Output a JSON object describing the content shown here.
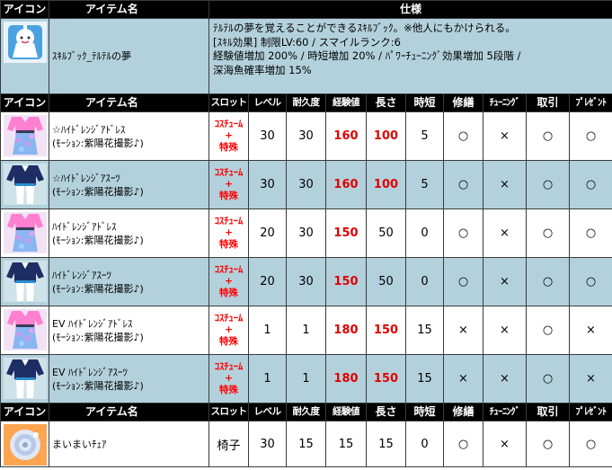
{
  "skill_table": {
    "header": {
      "icon": "アイコン",
      "name": "アイテム名",
      "spec": "仕様"
    },
    "item": {
      "icon": "skillbook-teruteru-icon",
      "name": "ｽｷﾙﾌﾞｯｸ_ﾃﾙﾃﾙの夢",
      "spec_lines": [
        "ﾃﾙﾃﾙの夢を覚えることができるｽｷﾙﾌﾞｯｸ。※他人にもかけられる。",
        "[ｽｷﾙ効果] 制限LV:60 / スマイルランク:6",
        "経験値増加 200% / 時短増加 20% / ﾊﾟﾜｰﾁｭｰﾆﾝｸﾞ効果増加 5段階 /",
        "深海魚確率増加 15%"
      ]
    }
  },
  "costume_table": {
    "headers": [
      "アイコン",
      "アイテム名",
      "スロット",
      "レベル",
      "耐久度",
      "経験値",
      "長さ",
      "時短",
      "修繕",
      "ﾁｭｰﾆﾝｸﾞ",
      "取引",
      "ﾌﾟﾚｾﾞﾝﾄ"
    ],
    "rows": [
      {
        "icon": "dress-icon",
        "name1": "☆ﾊｲﾄﾞﾚﾝｼﾞｱﾄﾞﾚｽ",
        "name2": "(ﾓｰｼｮﾝ:紫陽花撮影♪)",
        "slot1": "ｺｽﾁｭｰﾑ",
        "slot2": "+",
        "slot3": "特殊",
        "level": "30",
        "durability": "30",
        "exp": "160",
        "length": "100",
        "time": "5",
        "repair": "○",
        "tuning": "×",
        "trade": "○",
        "present": "○"
      },
      {
        "icon": "suit-icon",
        "name1": "☆ﾊｲﾄﾞﾚﾝｼﾞｱｽｰﾂ",
        "name2": "(ﾓｰｼｮﾝ:紫陽花撮影♪)",
        "slot1": "ｺｽﾁｭｰﾑ",
        "slot2": "+",
        "slot3": "特殊",
        "level": "30",
        "durability": "30",
        "exp": "160",
        "length": "100",
        "time": "5",
        "repair": "○",
        "tuning": "×",
        "trade": "○",
        "present": "○"
      },
      {
        "icon": "dress-icon",
        "name1": "ﾊｲﾄﾞﾚﾝｼﾞｱﾄﾞﾚｽ",
        "name2": "(ﾓｰｼｮﾝ:紫陽花撮影♪)",
        "slot1": "ｺｽﾁｭｰﾑ",
        "slot2": "+",
        "slot3": "特殊",
        "level": "20",
        "durability": "30",
        "exp": "150",
        "length": "50",
        "time": "0",
        "repair": "○",
        "tuning": "×",
        "trade": "○",
        "present": "○"
      },
      {
        "icon": "suit-icon",
        "name1": "ﾊｲﾄﾞﾚﾝｼﾞｱｽｰﾂ",
        "name2": "(ﾓｰｼｮﾝ:紫陽花撮影♪)",
        "slot1": "ｺｽﾁｭｰﾑ",
        "slot2": "+",
        "slot3": "特殊",
        "level": "20",
        "durability": "30",
        "exp": "150",
        "length": "50",
        "time": "0",
        "repair": "○",
        "tuning": "×",
        "trade": "○",
        "present": "○"
      },
      {
        "icon": "dress-icon",
        "name1": "EV ﾊｲﾄﾞﾚﾝｼﾞｱﾄﾞﾚｽ",
        "name2": "(ﾓｰｼｮﾝ:紫陽花撮影♪)",
        "slot1": "ｺｽﾁｭｰﾑ",
        "slot2": "+",
        "slot3": "特殊",
        "level": "1",
        "durability": "1",
        "exp": "180",
        "length": "150",
        "time": "15",
        "repair": "×",
        "tuning": "×",
        "trade": "○",
        "present": "×"
      },
      {
        "icon": "suit-icon",
        "name1": "EV ﾊｲﾄﾞﾚﾝｼﾞｱｽｰﾂ",
        "name2": "(ﾓｰｼｮﾝ:紫陽花撮影♪)",
        "slot1": "ｺｽﾁｭｰﾑ",
        "slot2": "+",
        "slot3": "特殊",
        "level": "1",
        "durability": "1",
        "exp": "180",
        "length": "150",
        "time": "15",
        "repair": "×",
        "tuning": "×",
        "trade": "○",
        "present": "×"
      }
    ]
  },
  "chair_table": {
    "headers": [
      "アイコン",
      "アイテム名",
      "スロット",
      "レベル",
      "耐久度",
      "経験値",
      "長さ",
      "時短",
      "修繕",
      "ﾁｭｰﾆﾝｸﾞ",
      "取引",
      "ﾌﾟﾚｾﾞﾝﾄ"
    ],
    "row": {
      "icon": "chair-icon",
      "name": "まいまいﾁｪｱ",
      "slot": "椅子",
      "level": "30",
      "durability": "15",
      "exp": "15",
      "length": "15",
      "time": "0",
      "repair": "○",
      "tuning": "×",
      "trade": "○",
      "present": "○"
    }
  },
  "colors": {
    "header_bg": "#000000",
    "row_blue": "#b3d1dc",
    "highlight_red": "#e00000"
  }
}
